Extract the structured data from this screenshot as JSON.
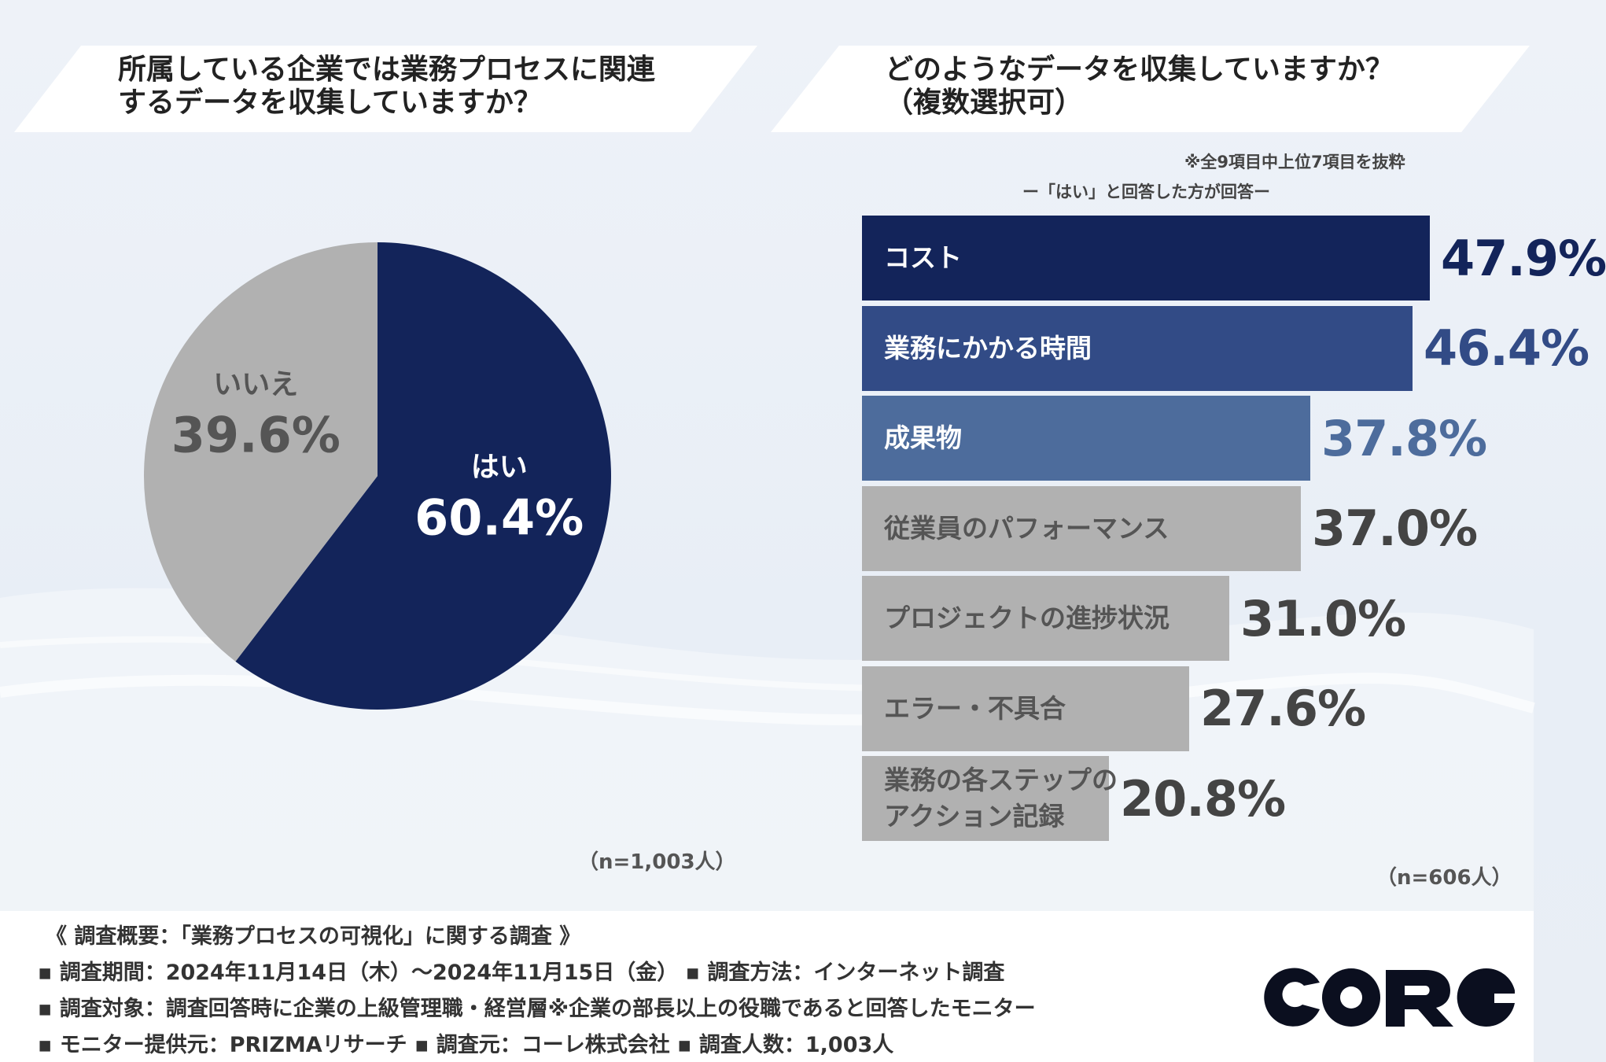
{
  "left_question": {
    "line1": "所属している企業では業務プロセスに関連",
    "line2": "するデータを収集していますか？",
    "sample": "（n=1,003人）"
  },
  "right_question": {
    "line1": "どのようなデータを収集していますか？",
    "line2": "（複数選択可）",
    "note1": "※全9項目中上位7項目を抜粋",
    "note2": "ー「はい」と回答した方が回答ー",
    "sample": "（n=606人）"
  },
  "chart_data": [
    {
      "type": "pie",
      "title": "所属している企業では業務プロセスに関連するデータを収集していますか？",
      "slices": [
        {
          "label": "はい",
          "value": 60.4,
          "value_text": "60.4%",
          "color": "#13245a",
          "text_color": "#ffffff"
        },
        {
          "label": "いいえ",
          "value": 39.6,
          "value_text": "39.6%",
          "color": "#b1b1b1",
          "text_color": "#555555"
        }
      ]
    },
    {
      "type": "bar",
      "orientation": "horizontal",
      "title": "どのようなデータを収集していますか？（複数選択可）",
      "xlim": [
        0,
        100
      ],
      "bars": [
        {
          "label_lines": [
            "コスト"
          ],
          "value": 47.9,
          "value_text": "47.9%",
          "color": "#13245a",
          "label_color": "#ffffff",
          "value_color": "#13245a"
        },
        {
          "label_lines": [
            "業務にかかる時間"
          ],
          "value": 46.4,
          "value_text": "46.4%",
          "color": "#324b86",
          "label_color": "#ffffff",
          "value_color": "#324b86"
        },
        {
          "label_lines": [
            "成果物"
          ],
          "value": 37.8,
          "value_text": "37.8%",
          "color": "#4d6c9c",
          "label_color": "#ffffff",
          "value_color": "#4d6c9c"
        },
        {
          "label_lines": [
            "従業員のパフォーマンス"
          ],
          "value": 37.0,
          "value_text": "37.0%",
          "color": "#b1b1b1",
          "label_color": "#555555",
          "value_color": "#444444"
        },
        {
          "label_lines": [
            "プロジェクトの進捗状況"
          ],
          "value": 31.0,
          "value_text": "31.0%",
          "color": "#b1b1b1",
          "label_color": "#555555",
          "value_color": "#444444"
        },
        {
          "label_lines": [
            "エラー・不具合"
          ],
          "value": 27.6,
          "value_text": "27.6%",
          "color": "#b1b1b1",
          "label_color": "#555555",
          "value_color": "#444444"
        },
        {
          "label_lines": [
            "業務の各ステップの",
            "アクション記録"
          ],
          "value": 20.8,
          "value_text": "20.8%",
          "color": "#b1b1b1",
          "label_color": "#555555",
          "value_color": "#444444"
        }
      ]
    }
  ],
  "footer": {
    "overview": "《 調査概要：「業務プロセスの可視化」に関する調査 》",
    "period": "▪ 調査期間：2024年11月14日（木）～2024年11月15日（金）  ▪ 調査方法：インターネット調査",
    "target": "▪ 調査対象：調査回答時に企業の上級管理職・経営層※企業の部長以上の役職であると回答したモニター",
    "provider": "▪ モニター提供元：PRIZMAリサーチ      ▪ 調査元：コーレ株式会社      ▪ 調査人数：1,003人"
  },
  "logo": {
    "text": "CORG",
    "color": "#0b0f1f"
  }
}
